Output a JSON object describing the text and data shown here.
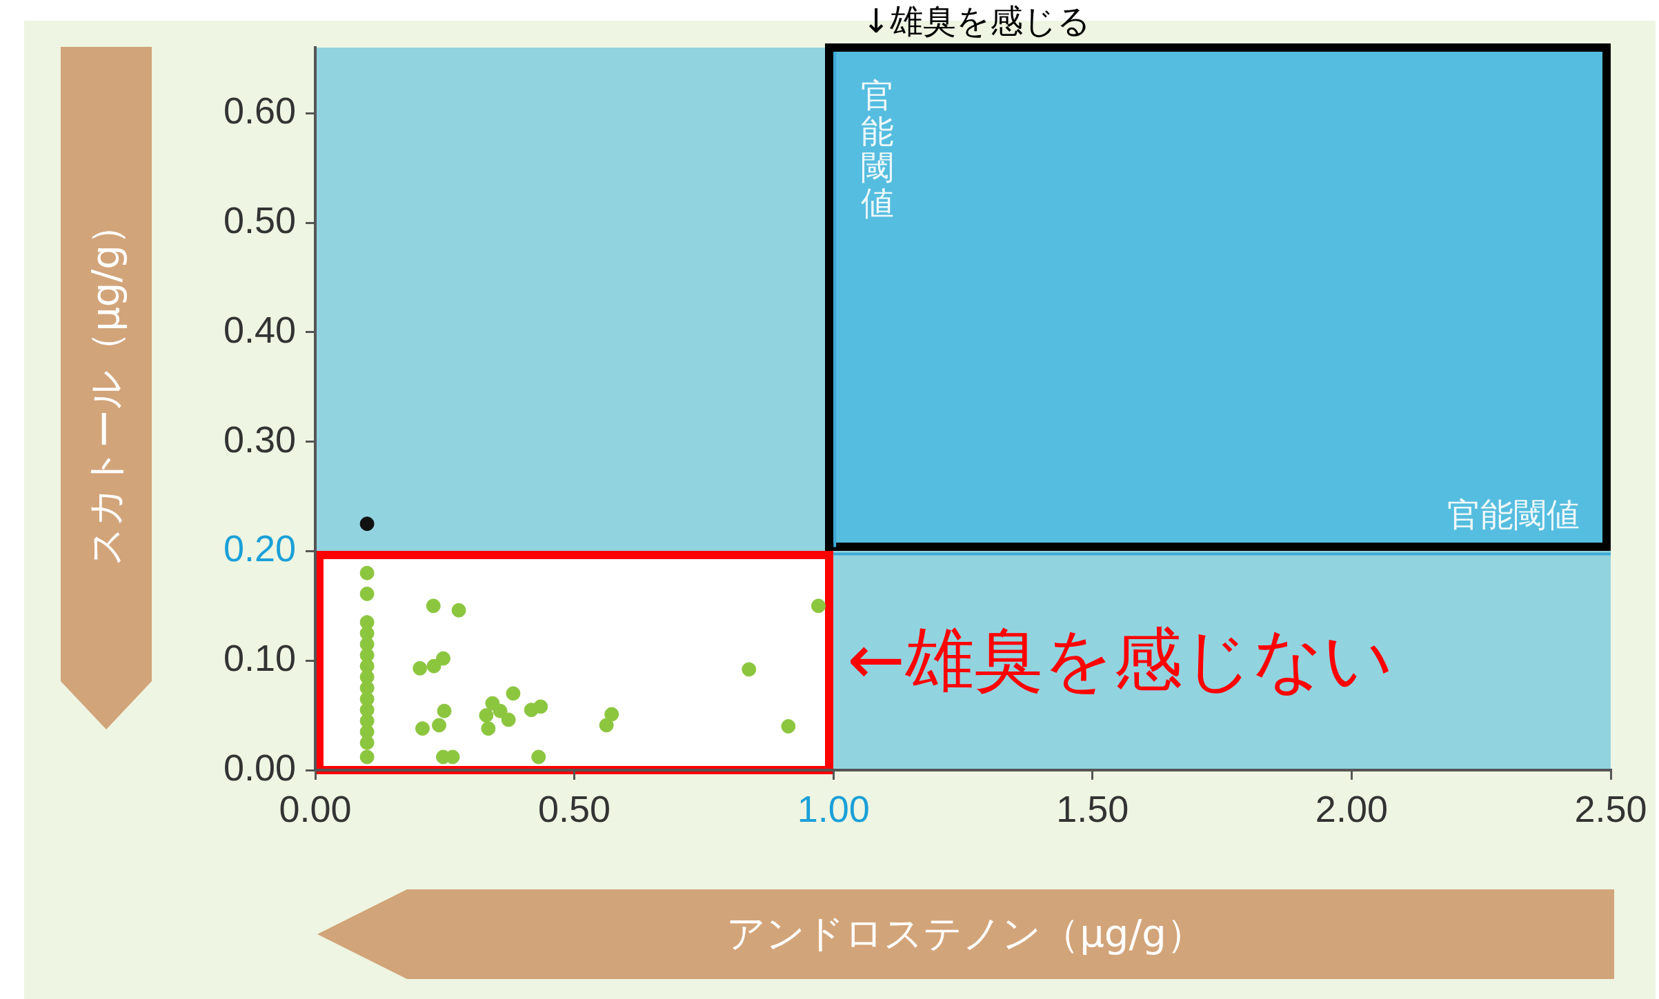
{
  "chart_data": {
    "type": "scatter",
    "title": "↓雄臭を感じる",
    "xlabel": "アンドロステノン（μg/g）",
    "ylabel": "スカトール（μg/g）",
    "xlim": [
      0,
      2.5
    ],
    "ylim": [
      0,
      0.66
    ],
    "xticks": [
      {
        "value": 0,
        "label": "0.00"
      },
      {
        "value": 0.5,
        "label": "0.50"
      },
      {
        "value": 1,
        "label": "1.00"
      },
      {
        "value": 1.5,
        "label": "1.50"
      },
      {
        "value": 2,
        "label": "2.00"
      },
      {
        "value": 2.5,
        "label": "2.50"
      }
    ],
    "yticks": [
      {
        "value": 0,
        "label": "0.00"
      },
      {
        "value": 0.1,
        "label": "0.10"
      },
      {
        "value": 0.2,
        "label": "0.20"
      },
      {
        "value": 0.3,
        "label": "0.30"
      },
      {
        "value": 0.4,
        "label": "0.40"
      },
      {
        "value": 0.5,
        "label": "0.50"
      },
      {
        "value": 0.6,
        "label": "0.60"
      }
    ],
    "marker": "circle",
    "legend": false,
    "ref_lines": [
      {
        "axis": "x",
        "value": 1.0,
        "label": "官能閾値",
        "color": "#3fa9d4"
      },
      {
        "axis": "y",
        "value": 0.2,
        "label": "官能閾値",
        "color": "#3fa9d4"
      }
    ],
    "annotations": [
      "←雄臭を感じない"
    ],
    "series": [
      {
        "type": "scatter",
        "color": "#8cc63f",
        "x": [
          0.1,
          0.1,
          0.1,
          0.1,
          0.1,
          0.1,
          0.1,
          0.1,
          0.1,
          0.1,
          0.1,
          0.1,
          0.1,
          0.1,
          0.1,
          0.228,
          0.277,
          0.202,
          0.229,
          0.247,
          0.249,
          0.239,
          0.207,
          0.247,
          0.265,
          0.334,
          0.33,
          0.342,
          0.357,
          0.373,
          0.382,
          0.417,
          0.435,
          0.431,
          0.562,
          0.572,
          0.837,
          0.913,
          0.971
        ],
        "values": [
          0.18,
          0.161,
          0.135,
          0.125,
          0.115,
          0.105,
          0.095,
          0.085,
          0.075,
          0.065,
          0.055,
          0.045,
          0.035,
          0.025,
          0.012,
          0.15,
          0.146,
          0.093,
          0.095,
          0.102,
          0.054,
          0.041,
          0.038,
          0.012,
          0.012,
          0.038,
          0.05,
          0.061,
          0.054,
          0.046,
          0.07,
          0.055,
          0.058,
          0.012,
          0.041,
          0.051,
          0.092,
          0.04,
          0.15
        ]
      },
      {
        "type": "scatter",
        "color": "#111111",
        "x": [
          0.1
        ],
        "values": [
          0.225
        ]
      }
    ]
  }
}
